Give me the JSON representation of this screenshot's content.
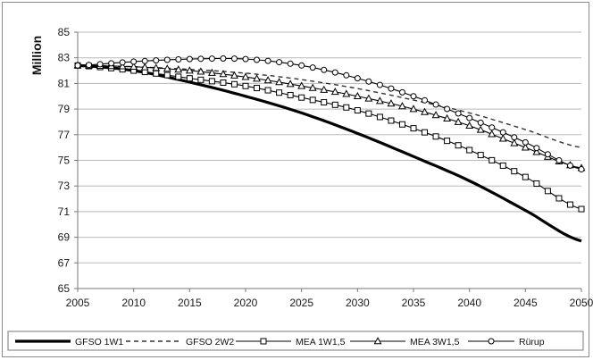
{
  "chart_data": {
    "type": "line",
    "title": "",
    "xlabel": "",
    "ylabel": "Million",
    "xlim": [
      2005,
      2050
    ],
    "ylim": [
      65,
      85
    ],
    "x_ticks": [
      "2005",
      "2010",
      "2015",
      "2020",
      "2025",
      "2030",
      "2035",
      "2040",
      "2045",
      "2050"
    ],
    "y_ticks": [
      "65",
      "67",
      "69",
      "71",
      "73",
      "75",
      "77",
      "79",
      "81",
      "83",
      "85"
    ],
    "grid": "horizontal",
    "legend_position": "bottom",
    "x": [
      2005,
      2010,
      2015,
      2020,
      2025,
      2030,
      2035,
      2040,
      2045,
      2050
    ],
    "series": [
      {
        "name": "GFSO 1W1",
        "style": "thick-solid",
        "values": [
          82.4,
          82.0,
          81.1,
          80.0,
          78.7,
          77.1,
          75.3,
          73.4,
          71.1,
          68.7
        ]
      },
      {
        "name": "GFSO 2W2",
        "style": "dashed",
        "values": [
          82.4,
          82.3,
          82.1,
          81.8,
          81.3,
          80.6,
          79.7,
          78.7,
          77.4,
          76.0
        ]
      },
      {
        "name": "MEA 1W1,5",
        "style": "square-markers",
        "values": [
          82.4,
          82.0,
          81.4,
          80.8,
          79.9,
          78.9,
          77.5,
          75.8,
          73.7,
          71.2
        ]
      },
      {
        "name": "MEA 3W1,5",
        "style": "triangle-markers",
        "values": [
          82.4,
          82.3,
          82.0,
          81.5,
          80.8,
          80.0,
          79.0,
          77.7,
          76.0,
          74.4
        ]
      },
      {
        "name": "Rürup",
        "style": "circle-markers",
        "values": [
          82.4,
          82.7,
          82.9,
          82.9,
          82.4,
          81.4,
          80.0,
          78.3,
          76.4,
          74.3
        ]
      }
    ],
    "colors": {
      "line": "#000000",
      "grid": "#b8b8b8",
      "axis": "#777777"
    }
  }
}
